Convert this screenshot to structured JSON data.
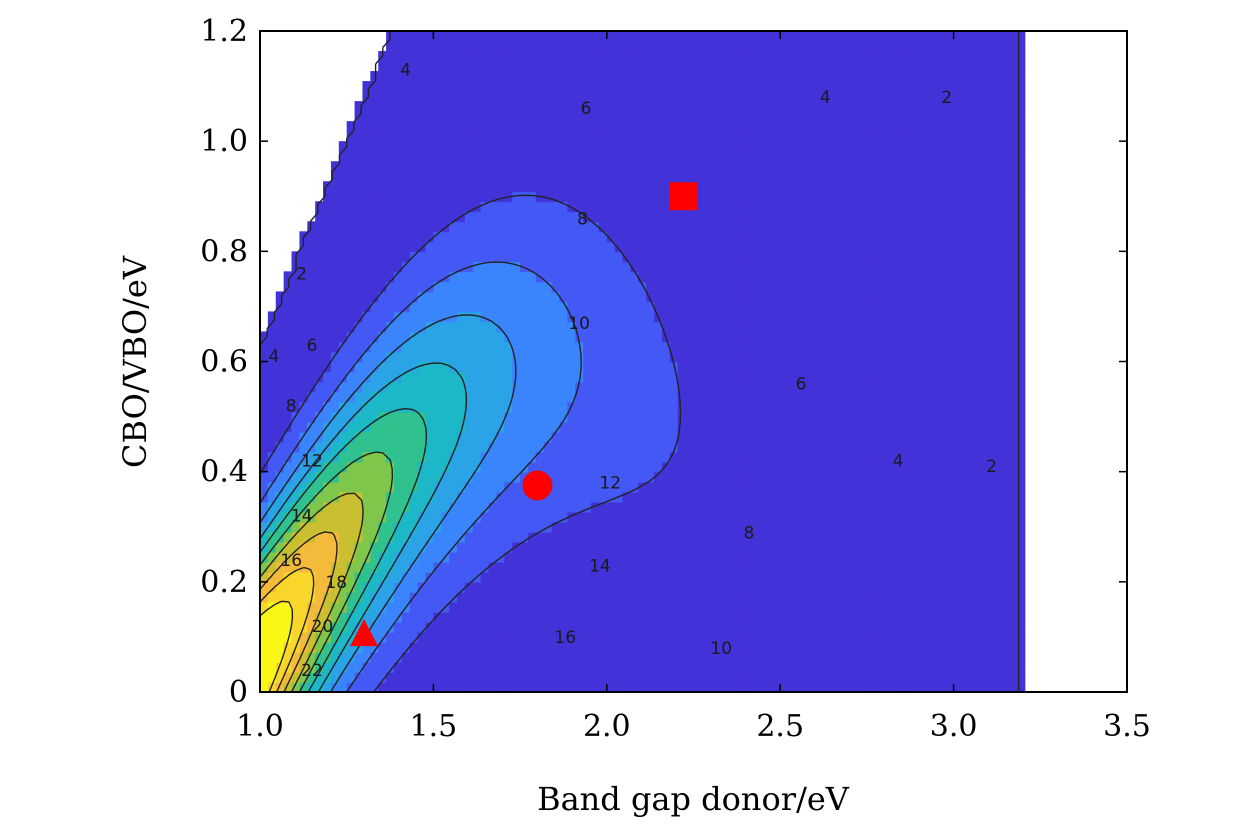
{
  "chart_data": {
    "type": "contour",
    "title": "",
    "xlabel": "Band gap donor/eV",
    "ylabel": "CBO/VBO/eV",
    "xlim": [
      1.0,
      3.5
    ],
    "ylim": [
      0,
      1.2
    ],
    "x_ticks": [
      1.0,
      1.5,
      2.0,
      2.5,
      3.0,
      3.5
    ],
    "x_tick_labels": [
      "1.0",
      "1.5",
      "2.0",
      "2.5",
      "3.0",
      "3.5"
    ],
    "y_ticks": [
      0,
      0.2,
      0.4,
      0.6,
      0.8,
      1.0,
      1.2
    ],
    "y_tick_labels": [
      "0",
      "0.2",
      "0.4",
      "0.6",
      "0.8",
      "1.0",
      "1.2"
    ],
    "grid": false,
    "colormap": "parula",
    "contour_levels": [
      2,
      4,
      6,
      8,
      10,
      12,
      14,
      16,
      18,
      20,
      22
    ],
    "contour_labels": [
      {
        "text": "2",
        "x": 1.12,
        "y": 0.76
      },
      {
        "text": "2",
        "x": 2.98,
        "y": 1.08
      },
      {
        "text": "2",
        "x": 3.11,
        "y": 0.41
      },
      {
        "text": "4",
        "x": 1.42,
        "y": 1.13
      },
      {
        "text": "4",
        "x": 2.63,
        "y": 1.08
      },
      {
        "text": "4",
        "x": 1.04,
        "y": 0.61
      },
      {
        "text": "4",
        "x": 2.84,
        "y": 0.42
      },
      {
        "text": "6",
        "x": 1.94,
        "y": 1.06
      },
      {
        "text": "6",
        "x": 1.15,
        "y": 0.63
      },
      {
        "text": "6",
        "x": 2.56,
        "y": 0.56
      },
      {
        "text": "8",
        "x": 1.93,
        "y": 0.86
      },
      {
        "text": "8",
        "x": 1.09,
        "y": 0.52
      },
      {
        "text": "8",
        "x": 2.41,
        "y": 0.29
      },
      {
        "text": "10",
        "x": 1.92,
        "y": 0.67
      },
      {
        "text": "10",
        "x": 2.33,
        "y": 0.08
      },
      {
        "text": "12",
        "x": 1.15,
        "y": 0.42
      },
      {
        "text": "12",
        "x": 2.01,
        "y": 0.38
      },
      {
        "text": "14",
        "x": 1.12,
        "y": 0.32
      },
      {
        "text": "14",
        "x": 1.98,
        "y": 0.23
      },
      {
        "text": "16",
        "x": 1.09,
        "y": 0.24
      },
      {
        "text": "16",
        "x": 1.88,
        "y": 0.1
      },
      {
        "text": "18",
        "x": 1.22,
        "y": 0.2
      },
      {
        "text": "20",
        "x": 1.18,
        "y": 0.12
      },
      {
        "text": "22",
        "x": 1.15,
        "y": 0.04
      }
    ],
    "markers": [
      {
        "shape": "square",
        "x": 2.22,
        "y": 0.9,
        "color": "#ff0000"
      },
      {
        "shape": "circle",
        "x": 1.8,
        "y": 0.375,
        "color": "#ff0000"
      },
      {
        "shape": "triangle",
        "x": 1.3,
        "y": 0.105,
        "color": "#ff0000"
      }
    ]
  }
}
